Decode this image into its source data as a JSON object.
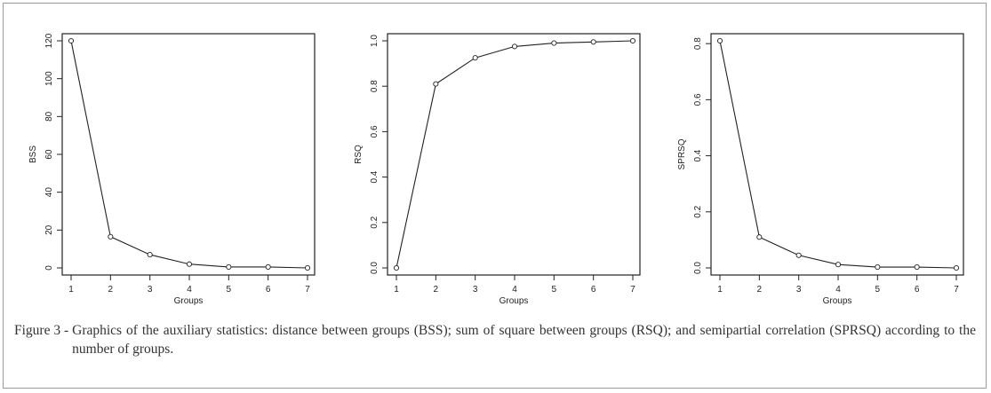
{
  "chart_data": [
    {
      "type": "line",
      "xlabel": "Groups",
      "ylabel": "BSS",
      "x": [
        1,
        2,
        3,
        4,
        5,
        6,
        7
      ],
      "y": [
        120,
        16.5,
        7,
        2,
        0.5,
        0.5,
        0
      ],
      "xlim": [
        1,
        7
      ],
      "ylim": [
        0,
        120
      ],
      "xticks": [
        "1",
        "2",
        "3",
        "4",
        "5",
        "6",
        "7"
      ],
      "yticks": [
        "0",
        "20",
        "40",
        "60",
        "80",
        "100",
        "120"
      ],
      "ytick_values": [
        0,
        20,
        40,
        60,
        80,
        100,
        120
      ],
      "grid": false,
      "marker": "circle-open"
    },
    {
      "type": "line",
      "xlabel": "Groups",
      "ylabel": "RSQ",
      "x": [
        1,
        2,
        3,
        4,
        5,
        6,
        7
      ],
      "y": [
        0,
        0.81,
        0.925,
        0.975,
        0.99,
        0.995,
        1.0
      ],
      "xlim": [
        1,
        7
      ],
      "ylim": [
        0,
        1.0
      ],
      "xticks": [
        "1",
        "2",
        "3",
        "4",
        "5",
        "6",
        "7"
      ],
      "yticks": [
        "0.0",
        "0.2",
        "0.4",
        "0.6",
        "0.8",
        "1.0"
      ],
      "ytick_values": [
        0,
        0.2,
        0.4,
        0.6,
        0.8,
        1.0
      ],
      "grid": false,
      "marker": "circle-open"
    },
    {
      "type": "line",
      "xlabel": "Groups",
      "ylabel": "SPRSQ",
      "x": [
        1,
        2,
        3,
        4,
        5,
        6,
        7
      ],
      "y": [
        0.81,
        0.11,
        0.045,
        0.012,
        0.003,
        0.003,
        0
      ],
      "xlim": [
        1,
        7
      ],
      "ylim": [
        0,
        0.81
      ],
      "xticks": [
        "1",
        "2",
        "3",
        "4",
        "5",
        "6",
        "7"
      ],
      "yticks": [
        "0.0",
        "0.2",
        "0.4",
        "0.6",
        "0.8"
      ],
      "ytick_values": [
        0,
        0.2,
        0.4,
        0.6,
        0.8
      ],
      "grid": false,
      "marker": "circle-open"
    }
  ],
  "caption": {
    "label": "Figure 3 -",
    "text": "Graphics of the auxiliary statistics: distance between groups (BSS); sum of square between groups (RSQ); and semipartial correlation (SPRSQ) according to the number of groups."
  }
}
